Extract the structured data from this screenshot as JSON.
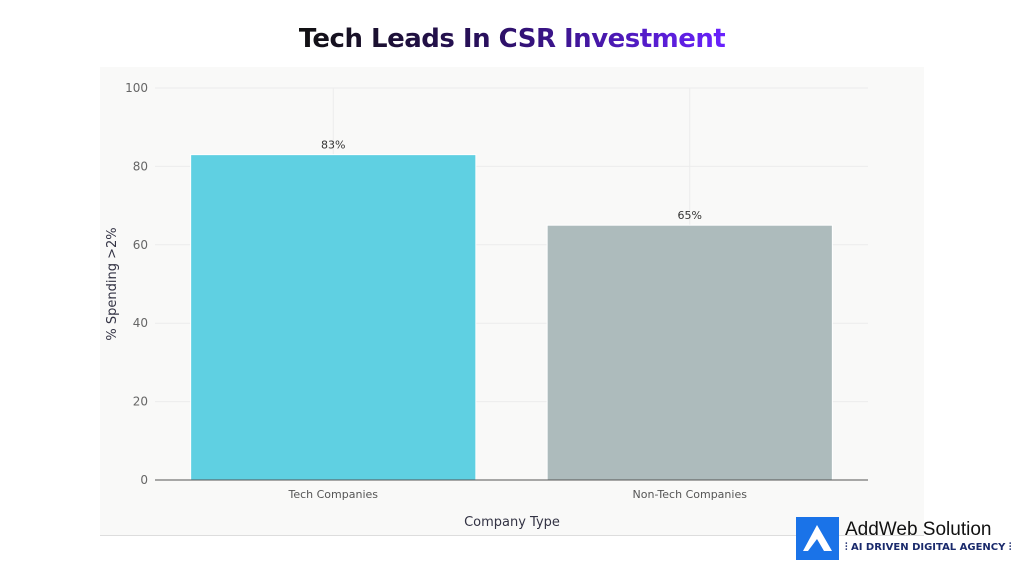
{
  "title": "Tech Leads In CSR Investment",
  "chart_data": {
    "type": "bar",
    "categories": [
      "Tech Companies",
      "Non-Tech Companies"
    ],
    "values": [
      83,
      65
    ],
    "data_labels": [
      "83%",
      "65%"
    ],
    "colors": [
      "#5fd0e2",
      "#adbbbc"
    ],
    "xlabel": "Company Type",
    "ylabel": "% Spending >2%",
    "ylim": [
      0,
      100
    ],
    "yticks": [
      0,
      20,
      40,
      60,
      80,
      100
    ],
    "grid": true
  },
  "logo": {
    "name": "AddWeb Solution",
    "tagline": "AI DRIVEN DIGITAL AGENCY",
    "color": "#1a73e8"
  }
}
